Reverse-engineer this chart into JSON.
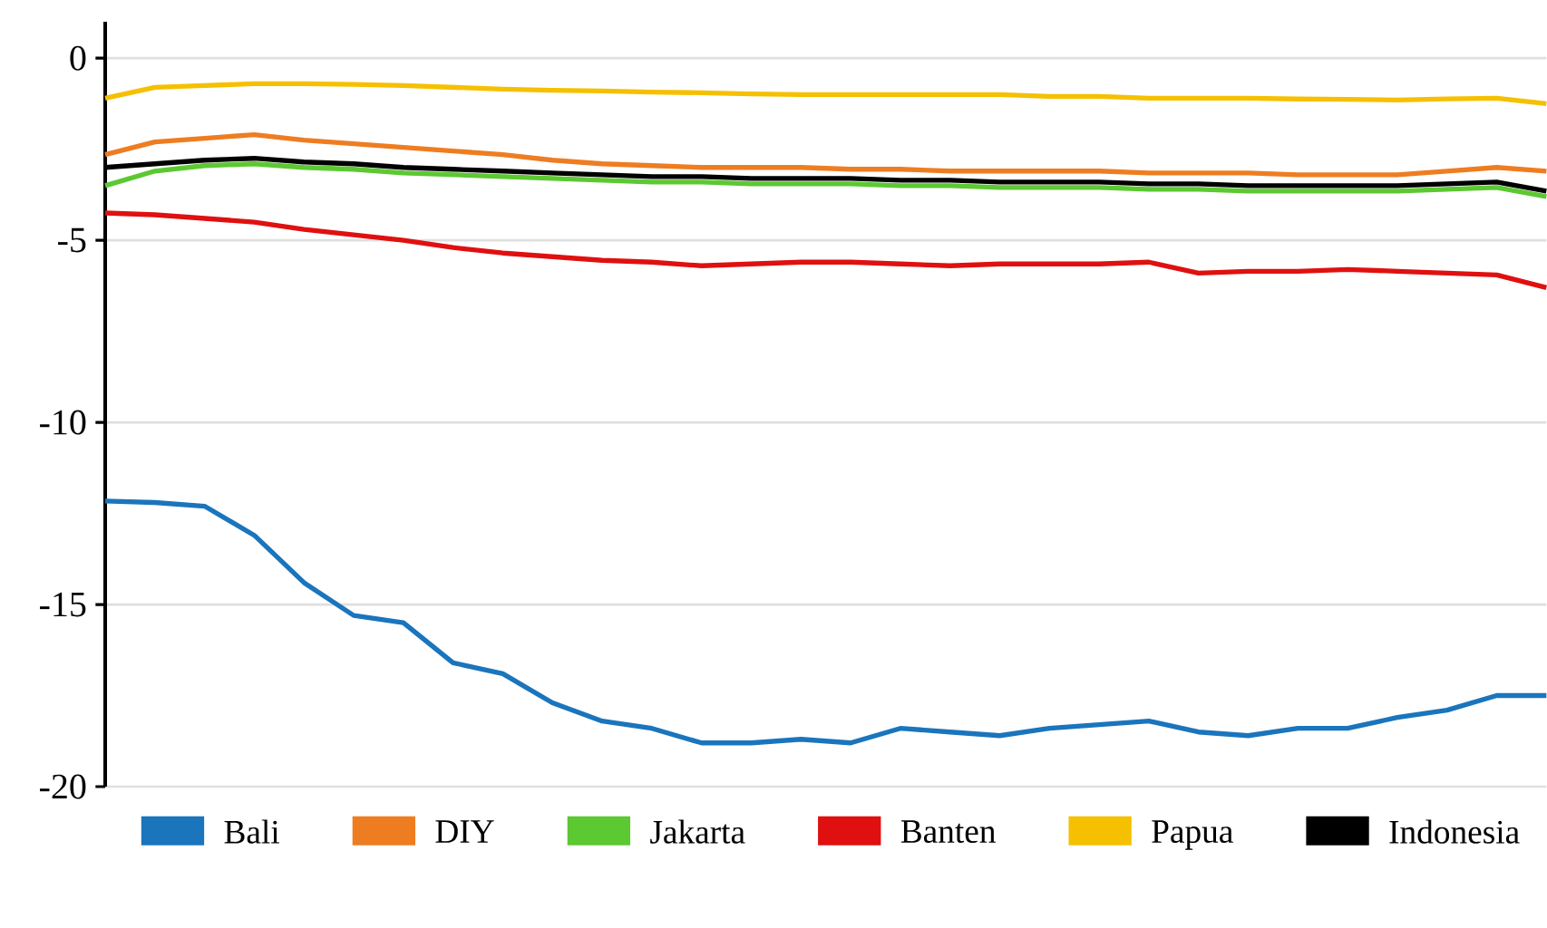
{
  "chart_data": {
    "type": "line",
    "categories": [
      null,
      null,
      null,
      null,
      null,
      null,
      null,
      null,
      null,
      null,
      null,
      null,
      null,
      null,
      null,
      null,
      null,
      null,
      null,
      null,
      null,
      null,
      null,
      null,
      null,
      null,
      null,
      null,
      null,
      null
    ],
    "series": [
      {
        "name": "Bali",
        "color": "#1a75bc",
        "values": [
          -12.16,
          -12.2,
          -12.3,
          -13.1,
          -14.4,
          -15.3,
          -15.5,
          -16.6,
          -16.9,
          -17.7,
          -18.2,
          -18.4,
          -18.8,
          -18.8,
          -18.7,
          -18.8,
          -18.4,
          -18.5,
          -18.6,
          -18.4,
          -18.3,
          -18.2,
          -18.5,
          -18.6,
          -18.4,
          -18.4,
          -18.1,
          -17.9,
          -17.5,
          -17.5
        ]
      },
      {
        "name": "DIY",
        "color": "#ee7d22",
        "values": [
          -2.65,
          -2.3,
          -2.2,
          -2.1,
          -2.25,
          -2.35,
          -2.45,
          -2.55,
          -2.65,
          -2.8,
          -2.9,
          -2.95,
          -3.0,
          -3.0,
          -3.0,
          -3.05,
          -3.05,
          -3.1,
          -3.1,
          -3.1,
          -3.1,
          -3.15,
          -3.15,
          -3.15,
          -3.2,
          -3.2,
          -3.2,
          -3.1,
          -3.0,
          -3.1
        ]
      },
      {
        "name": "Jakarta",
        "color": "#5cc832",
        "values": [
          -3.5,
          -3.1,
          -2.95,
          -2.9,
          -3.0,
          -3.05,
          -3.15,
          -3.2,
          -3.25,
          -3.3,
          -3.35,
          -3.4,
          -3.4,
          -3.45,
          -3.45,
          -3.45,
          -3.5,
          -3.5,
          -3.55,
          -3.55,
          -3.55,
          -3.6,
          -3.6,
          -3.65,
          -3.65,
          -3.65,
          -3.65,
          -3.6,
          -3.55,
          -3.8
        ]
      },
      {
        "name": "Banten",
        "color": "#e01010",
        "values": [
          -4.25,
          -4.3,
          -4.4,
          -4.5,
          -4.7,
          -4.85,
          -5.0,
          -5.2,
          -5.35,
          -5.45,
          -5.55,
          -5.6,
          -5.7,
          -5.65,
          -5.6,
          -5.6,
          -5.65,
          -5.7,
          -5.65,
          -5.65,
          -5.65,
          -5.6,
          -5.9,
          -5.85,
          -5.85,
          -5.8,
          -5.85,
          -5.9,
          -5.95,
          -6.3
        ]
      },
      {
        "name": "Papua",
        "color": "#f5c000",
        "values": [
          -1.1,
          -0.8,
          -0.75,
          -0.7,
          -0.7,
          -0.72,
          -0.75,
          -0.8,
          -0.85,
          -0.88,
          -0.9,
          -0.93,
          -0.95,
          -0.98,
          -1.0,
          -1.0,
          -1.0,
          -1.0,
          -1.0,
          -1.05,
          -1.05,
          -1.1,
          -1.1,
          -1.1,
          -1.12,
          -1.13,
          -1.15,
          -1.12,
          -1.1,
          -1.25
        ]
      },
      {
        "name": "Indonesia",
        "color": "#000000",
        "values": [
          -3.0,
          -2.9,
          -2.8,
          -2.75,
          -2.85,
          -2.9,
          -3.0,
          -3.05,
          -3.1,
          -3.15,
          -3.2,
          -3.25,
          -3.25,
          -3.3,
          -3.3,
          -3.3,
          -3.35,
          -3.35,
          -3.4,
          -3.4,
          -3.4,
          -3.45,
          -3.45,
          -3.5,
          -3.5,
          -3.5,
          -3.5,
          -3.45,
          -3.4,
          -3.65
        ]
      }
    ],
    "ylim": [
      -20,
      1
    ],
    "yticks": [
      -20,
      -15,
      -10,
      -5,
      0
    ],
    "grid": "y",
    "legend": "bottom",
    "marker": "none",
    "line_style": "solid"
  }
}
